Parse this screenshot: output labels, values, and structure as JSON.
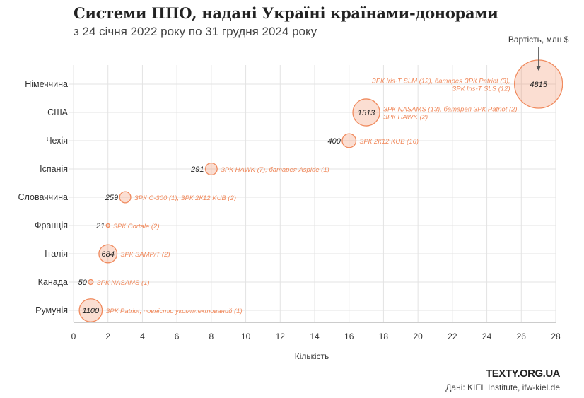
{
  "chart_data": {
    "type": "scatter",
    "title": "Системи ППО, надані Україні країнами-донорами",
    "subtitle": "з 24 січня 2022 року по 31 грудня 2024 року",
    "xlabel": "Кількість",
    "size_legend": "Вартість, млн $",
    "xlim": [
      0,
      28
    ],
    "xticks": [
      0,
      2,
      4,
      6,
      8,
      10,
      12,
      14,
      16,
      18,
      20,
      22,
      24,
      26,
      28
    ],
    "grid": true,
    "bubble_color": "#f08a5d",
    "points": [
      {
        "country": "Німеччина",
        "count": 27,
        "cost": 4815,
        "systems": [
          "ЗРК Iris-T SLM (12), батарея ЗРК Patriot (3),",
          "ЗРК Iris-T SLS (12)"
        ],
        "label_side": "left",
        "value_inside": true
      },
      {
        "country": "США",
        "count": 17,
        "cost": 1513,
        "systems": [
          "ЗРК NASAMS (13), батарея ЗРК Patriot (2),",
          "ЗРК HAWK (2)"
        ],
        "label_side": "right",
        "value_inside": true
      },
      {
        "country": "Чехія",
        "count": 16,
        "cost": 400,
        "systems": [
          "ЗРК 2К12 KUB (16)"
        ],
        "label_side": "right",
        "value_inside": false
      },
      {
        "country": "Іспанія",
        "count": 8,
        "cost": 291,
        "systems": [
          "ЗРК HAWK (7), батарея Aspide (1)"
        ],
        "label_side": "right",
        "value_inside": false
      },
      {
        "country": "Словаччина",
        "count": 3,
        "cost": 259,
        "systems": [
          "ЗРК С-300 (1), ЗРК 2К12 KUB (2)"
        ],
        "label_side": "right",
        "value_inside": false
      },
      {
        "country": "Франція",
        "count": 2,
        "cost": 21,
        "systems": [
          "ЗРК Cortale (2)"
        ],
        "label_side": "right",
        "value_inside": false
      },
      {
        "country": "Італія",
        "count": 2,
        "cost": 684,
        "systems": [
          "ЗРК SAMP/T (2)"
        ],
        "label_side": "right",
        "value_inside": true
      },
      {
        "country": "Канада",
        "count": 1,
        "cost": 50,
        "systems": [
          "ЗРК NASAMS (1)"
        ],
        "label_side": "right",
        "value_inside": false
      },
      {
        "country": "Румунія",
        "count": 1,
        "cost": 1100,
        "systems": [
          "ЗРК Patriot, повністю укомплектований (1)"
        ],
        "label_side": "right",
        "value_inside": true
      }
    ]
  },
  "footer": {
    "brand": "TEXTY.ORG.UA",
    "source": "Дані: KIEL Institute, ifw-kiel.de"
  }
}
